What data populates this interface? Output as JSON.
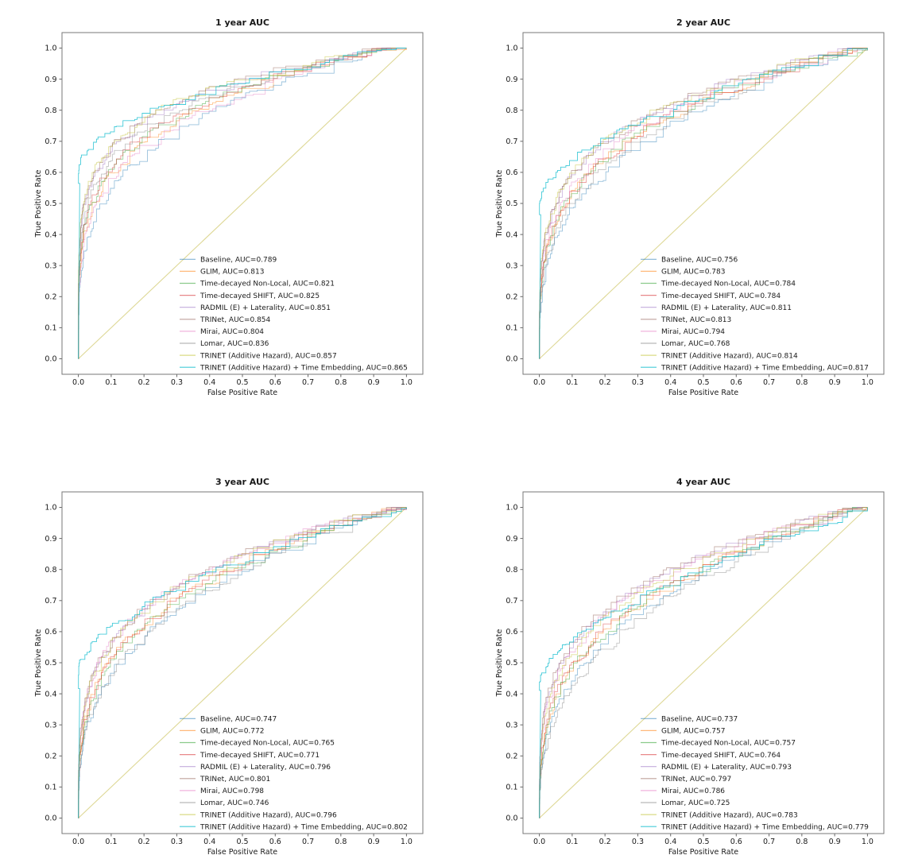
{
  "style": {
    "background": "#ffffff",
    "frame_color": "#777777",
    "tick_color": "#666666",
    "text_color": "#1a1a1a",
    "diagonal_color": "#ded896",
    "curve_opacity": 0.45,
    "highlight_opacity": 0.8
  },
  "axis": {
    "xlabel": "False Positive Rate",
    "ylabel": "True Positive Rate",
    "xticks": [
      "0.0",
      "0.1",
      "0.2",
      "0.3",
      "0.4",
      "0.5",
      "0.6",
      "0.7",
      "0.8",
      "0.9",
      "1.0"
    ],
    "yticks": [
      "0.0",
      "0.1",
      "0.2",
      "0.3",
      "0.4",
      "0.5",
      "0.6",
      "0.7",
      "0.8",
      "0.9",
      "1.0"
    ]
  },
  "chart_data": [
    {
      "type": "line",
      "title": "1 year AUC",
      "xlabel": "False Positive Rate",
      "ylabel": "True Positive Rate",
      "xlim": [
        0,
        1
      ],
      "ylim": [
        0,
        1
      ],
      "grid": false,
      "legend_position": "lower right",
      "diagonal": [
        [
          0,
          0
        ],
        [
          1,
          1
        ]
      ],
      "series": [
        {
          "name": "Baseline",
          "auc": 0.789,
          "color": "#1f77b4",
          "legend_label": "Baseline, AUC=0.789"
        },
        {
          "name": "GLIM",
          "auc": 0.813,
          "color": "#ff7f0e",
          "legend_label": "GLIM, AUC=0.813"
        },
        {
          "name": "Time-decayed Non-Local",
          "auc": 0.821,
          "color": "#2ca02c",
          "legend_label": "Time-decayed Non-Local, AUC=0.821"
        },
        {
          "name": "Time-decayed SHIFT",
          "auc": 0.825,
          "color": "#d62728",
          "legend_label": "Time-decayed SHIFT, AUC=0.825"
        },
        {
          "name": "RADMIL (E) + Laterality",
          "auc": 0.851,
          "color": "#9467bd",
          "legend_label": "RADMIL (E) + Laterality, AUC=0.851"
        },
        {
          "name": "TRINet",
          "auc": 0.854,
          "color": "#8c564b",
          "legend_label": "TRINet, AUC=0.854"
        },
        {
          "name": "Mirai",
          "auc": 0.804,
          "color": "#e377c2",
          "legend_label": "Mirai, AUC=0.804"
        },
        {
          "name": "Lomar",
          "auc": 0.836,
          "color": "#7f7f7f",
          "legend_label": "Lomar, AUC=0.836"
        },
        {
          "name": "TRINET (Additive Hazard)",
          "auc": 0.857,
          "color": "#bcbd22",
          "legend_label": "TRINET (Additive Hazard), AUC=0.857"
        },
        {
          "name": "TRINET (Additive Hazard) + Time Embedding",
          "auc": 0.865,
          "color": "#17becf",
          "start_tpr": 0.6,
          "legend_label": "TRINET (Additive Hazard) + Time Embedding, AUC=0.865"
        }
      ]
    },
    {
      "type": "line",
      "title": "2 year AUC",
      "xlabel": "False Positive Rate",
      "ylabel": "True Positive Rate",
      "xlim": [
        0,
        1
      ],
      "ylim": [
        0,
        1
      ],
      "grid": false,
      "legend_position": "lower right",
      "diagonal": [
        [
          0,
          0
        ],
        [
          1,
          1
        ]
      ],
      "series": [
        {
          "name": "Baseline",
          "auc": 0.756,
          "color": "#1f77b4",
          "legend_label": "Baseline, AUC=0.756"
        },
        {
          "name": "GLIM",
          "auc": 0.783,
          "color": "#ff7f0e",
          "legend_label": "GLIM, AUC=0.783"
        },
        {
          "name": "Time-decayed Non-Local",
          "auc": 0.784,
          "color": "#2ca02c",
          "legend_label": "Time-decayed Non-Local, AUC=0.784"
        },
        {
          "name": "Time-decayed SHIFT",
          "auc": 0.784,
          "color": "#d62728",
          "legend_label": "Time-decayed SHIFT, AUC=0.784"
        },
        {
          "name": "RADMIL (E) + Laterality",
          "auc": 0.811,
          "color": "#9467bd",
          "legend_label": "RADMIL (E) + Laterality, AUC=0.811"
        },
        {
          "name": "TRINet",
          "auc": 0.813,
          "color": "#8c564b",
          "legend_label": "TRINet, AUC=0.813"
        },
        {
          "name": "Mirai",
          "auc": 0.794,
          "color": "#e377c2",
          "legend_label": "Mirai, AUC=0.794"
        },
        {
          "name": "Lomar",
          "auc": 0.768,
          "color": "#7f7f7f",
          "legend_label": "Lomar, AUC=0.768"
        },
        {
          "name": "TRINET (Additive Hazard)",
          "auc": 0.814,
          "color": "#bcbd22",
          "legend_label": "TRINET (Additive Hazard), AUC=0.814"
        },
        {
          "name": "TRINET (Additive Hazard) + Time Embedding",
          "auc": 0.817,
          "color": "#17becf",
          "start_tpr": 0.5,
          "legend_label": "TRINET (Additive Hazard) + Time Embedding, AUC=0.817"
        }
      ]
    },
    {
      "type": "line",
      "title": "3 year AUC",
      "xlabel": "False Positive Rate",
      "ylabel": "True Positive Rate",
      "xlim": [
        0,
        1
      ],
      "ylim": [
        0,
        1
      ],
      "grid": false,
      "legend_position": "lower right",
      "diagonal": [
        [
          0,
          0
        ],
        [
          1,
          1
        ]
      ],
      "series": [
        {
          "name": "Baseline",
          "auc": 0.747,
          "color": "#1f77b4",
          "legend_label": "Baseline, AUC=0.747"
        },
        {
          "name": "GLIM",
          "auc": 0.772,
          "color": "#ff7f0e",
          "legend_label": "GLIM, AUC=0.772"
        },
        {
          "name": "Time-decayed Non-Local",
          "auc": 0.765,
          "color": "#2ca02c",
          "legend_label": "Time-decayed Non-Local, AUC=0.765"
        },
        {
          "name": "Time-decayed SHIFT",
          "auc": 0.771,
          "color": "#d62728",
          "legend_label": "Time-decayed SHIFT, AUC=0.771"
        },
        {
          "name": "RADMIL (E) + Laterality",
          "auc": 0.796,
          "color": "#9467bd",
          "legend_label": "RADMIL (E) + Laterality, AUC=0.796"
        },
        {
          "name": "TRINet",
          "auc": 0.801,
          "color": "#8c564b",
          "legend_label": "TRINet, AUC=0.801"
        },
        {
          "name": "Mirai",
          "auc": 0.798,
          "color": "#e377c2",
          "legend_label": "Mirai, AUC=0.798"
        },
        {
          "name": "Lomar",
          "auc": 0.746,
          "color": "#7f7f7f",
          "legend_label": "Lomar, AUC=0.746"
        },
        {
          "name": "TRINET (Additive Hazard)",
          "auc": 0.796,
          "color": "#bcbd22",
          "legend_label": "TRINET (Additive Hazard), AUC=0.796"
        },
        {
          "name": "TRINET (Additive Hazard) + Time Embedding",
          "auc": 0.802,
          "color": "#17becf",
          "start_tpr": 0.47,
          "legend_label": "TRINET (Additive Hazard) + Time Embedding, AUC=0.802"
        }
      ]
    },
    {
      "type": "line",
      "title": "4 year AUC",
      "xlabel": "False Positive Rate",
      "ylabel": "True Positive Rate",
      "xlim": [
        0,
        1
      ],
      "ylim": [
        0,
        1
      ],
      "grid": false,
      "legend_position": "lower right",
      "diagonal": [
        [
          0,
          0
        ],
        [
          1,
          1
        ]
      ],
      "series": [
        {
          "name": "Baseline",
          "auc": 0.737,
          "color": "#1f77b4",
          "legend_label": "Baseline, AUC=0.737"
        },
        {
          "name": "GLIM",
          "auc": 0.757,
          "color": "#ff7f0e",
          "legend_label": "GLIM, AUC=0.757"
        },
        {
          "name": "Time-decayed Non-Local",
          "auc": 0.757,
          "color": "#2ca02c",
          "legend_label": "Time-decayed Non-Local, AUC=0.757"
        },
        {
          "name": "Time-decayed SHIFT",
          "auc": 0.764,
          "color": "#d62728",
          "legend_label": "Time-decayed SHIFT, AUC=0.764"
        },
        {
          "name": "RADMIL (E) + Laterality",
          "auc": 0.793,
          "color": "#9467bd",
          "legend_label": "RADMIL (E) + Laterality, AUC=0.793"
        },
        {
          "name": "TRINet",
          "auc": 0.797,
          "color": "#8c564b",
          "legend_label": "TRINet, AUC=0.797"
        },
        {
          "name": "Mirai",
          "auc": 0.786,
          "color": "#e377c2",
          "legend_label": "Mirai, AUC=0.786"
        },
        {
          "name": "Lomar",
          "auc": 0.725,
          "color": "#7f7f7f",
          "legend_label": "Lomar, AUC=0.725"
        },
        {
          "name": "TRINET (Additive Hazard)",
          "auc": 0.783,
          "color": "#bcbd22",
          "legend_label": "TRINET (Additive Hazard), AUC=0.783"
        },
        {
          "name": "TRINET (Additive Hazard) + Time Embedding",
          "auc": 0.779,
          "color": "#17becf",
          "start_tpr": 0.43,
          "legend_label": "TRINET (Additive Hazard) + Time Embedding, AUC=0.779"
        }
      ]
    }
  ]
}
